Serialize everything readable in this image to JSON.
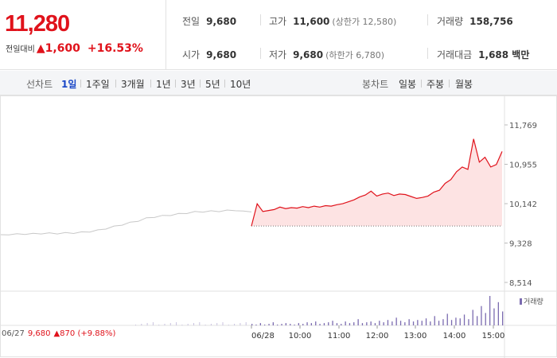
{
  "quote": {
    "price": "11,280",
    "change_label": "전일대비",
    "change_arrow": "▲",
    "change_value": "1,600",
    "change_rate": "+16.53%"
  },
  "stats": {
    "prev_close": {
      "label": "전일",
      "value": "9,680"
    },
    "high": {
      "label": "고가",
      "value": "11,600",
      "sub": "(상한가 12,580)"
    },
    "volume": {
      "label": "거래량",
      "value": "158,756"
    },
    "open": {
      "label": "시가",
      "value": "9,680"
    },
    "low": {
      "label": "저가",
      "value": "9,680",
      "sub": "(하한가 6,780)"
    },
    "trade_amount": {
      "label": "거래대금",
      "value": "1,688 백만"
    }
  },
  "line_chart_bar": {
    "title": "선차트",
    "periods": [
      "1일",
      "1주일",
      "3개월",
      "1년",
      "3년",
      "5년",
      "10년"
    ],
    "active_period": "1일"
  },
  "candle_chart_bar": {
    "title": "봉차트",
    "periods": [
      "일봉",
      "주봉",
      "월봉"
    ]
  },
  "reference": {
    "date": "06/27",
    "price": "9,680",
    "arrow": "▲",
    "change": "870 (+9.88%)"
  },
  "volume_legend": "거래량",
  "colors": {
    "up": "#e0121b",
    "prev_day_line": "#c8c8c8",
    "fill": "#fde3e3",
    "volume": "#7b6bb0",
    "active_tab": "#1a47c7"
  },
  "chart_data": {
    "type": "line",
    "yticks": [
      "11,769",
      "10,955",
      "10,142",
      "9,328",
      "8,514"
    ],
    "ylim": [
      8514,
      11769
    ],
    "x_tick_labels": [
      "06/28",
      "10:00",
      "11:00",
      "12:00",
      "13:00",
      "14:00",
      "15:00"
    ],
    "baseline": 9680,
    "series": [
      {
        "values": [
          9500,
          9520,
          9520,
          9530,
          9530,
          9540,
          9540,
          9540,
          9545,
          9550,
          9560,
          9580,
          9600,
          9640,
          9680,
          9720,
          9760,
          9800,
          9850,
          9880,
          9900,
          9920,
          9940,
          9960,
          9980,
          9990,
          9995,
          10000,
          10010,
          10020,
          9990,
          9995
        ]
      },
      {
        "values": [
          9680,
          10140,
          9980,
          10000,
          10020,
          10070,
          10040,
          10060,
          10050,
          10080,
          10060,
          10090,
          10070,
          10100,
          10090,
          10120,
          10140,
          10180,
          10220,
          10280,
          10320,
          10400,
          10300,
          10340,
          10360,
          10310,
          10340,
          10330,
          10290,
          10250,
          10270,
          10300,
          10380,
          10420,
          10560,
          10640,
          10800,
          10900,
          10850,
          11480,
          11000,
          11100,
          10900,
          10950,
          11220
        ]
      }
    ],
    "volume": [
      2,
      1,
      3,
      1,
      2,
      4,
      1,
      2,
      3,
      2,
      1,
      3,
      2,
      4,
      3,
      5,
      2,
      3,
      4,
      6,
      3,
      2,
      5,
      3,
      4,
      8,
      3,
      4,
      5,
      3,
      6,
      4,
      7,
      5,
      10,
      6,
      4,
      8,
      5,
      7,
      6,
      9,
      5,
      12,
      6,
      8,
      15,
      7,
      10,
      9,
      14,
      8,
      20,
      12,
      25,
      16,
      38,
      22,
      30,
      18
    ]
  }
}
